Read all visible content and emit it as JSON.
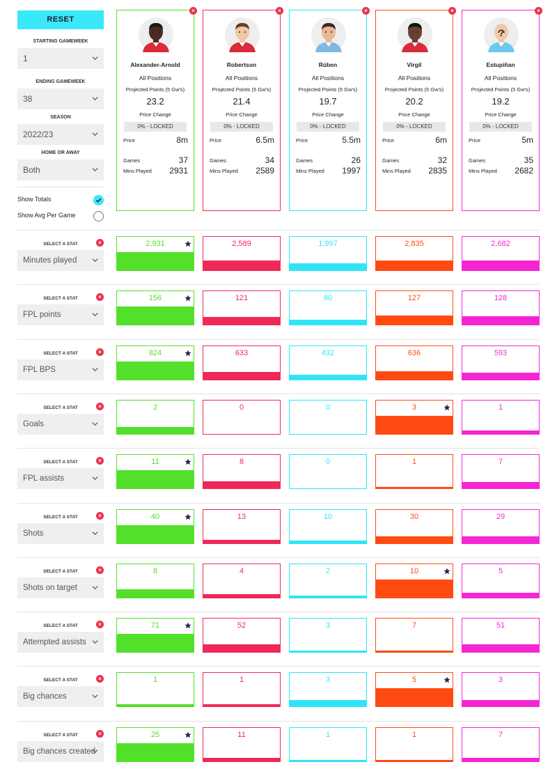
{
  "filters": {
    "reset_label": "RESET",
    "starting_gameweek_label": "STARTING GAMEWEEK",
    "starting_gameweek_value": "1",
    "ending_gameweek_label": "ENDING GAMEWEEK",
    "ending_gameweek_value": "38",
    "season_label": "SEASON",
    "season_value": "2022/23",
    "home_away_label": "HOME OR AWAY",
    "home_away_value": "Both",
    "show_totals_label": "Show Totals",
    "show_totals_checked": true,
    "show_avg_label": "Show Avg Per Game",
    "show_avg_checked": false
  },
  "card_labels": {
    "projected_points": "Projected Points (5 Gw's)",
    "price_change": "Price Change",
    "price": "Price",
    "games": "Games",
    "mins_played": "Mins Played",
    "close": "×"
  },
  "players": [
    {
      "name": "Alexander-Arnold",
      "position": "All Positions",
      "projected_points": "23.2",
      "price_change": "0% - LOCKED",
      "price": "8m",
      "games": "37",
      "mins_played": "2931",
      "color": "#52e02a",
      "skin": "#4a2c22",
      "hair": "#1a1a1a",
      "shirt": "#d92b3a",
      "bald": false
    },
    {
      "name": "Robertson",
      "position": "All Positions",
      "projected_points": "21.4",
      "price_change": "0% - LOCKED",
      "price": "6.5m",
      "games": "34",
      "mins_played": "2589",
      "color": "#ef2857",
      "skin": "#f0c7a8",
      "hair": "#6b3a1f",
      "shirt": "#d92b3a",
      "bald": false
    },
    {
      "name": "Rúben",
      "position": "All Positions",
      "projected_points": "19.7",
      "price_change": "0% - LOCKED",
      "price": "5.5m",
      "games": "26",
      "mins_played": "1997",
      "color": "#30e4f7",
      "skin": "#e8b894",
      "hair": "#3a2a1f",
      "shirt": "#7fb8e0",
      "bald": false
    },
    {
      "name": "Virgil",
      "position": "All Positions",
      "projected_points": "20.2",
      "price_change": "0% - LOCKED",
      "price": "6m",
      "games": "32",
      "mins_played": "2835",
      "color": "#ff4a12",
      "skin": "#6a4030",
      "hair": "#111111",
      "shirt": "#d92b3a",
      "bald": false
    },
    {
      "name": "Estupiñan",
      "position": "All Positions",
      "projected_points": "19.2",
      "price_change": "0% - LOCKED",
      "price": "5m",
      "games": "35",
      "mins_played": "2682",
      "color": "#f525d4",
      "skin": "#f2c9a8",
      "hair": "#f2c9a8",
      "shirt": "#6ec8ef",
      "bald": true
    }
  ],
  "stat_select_label": "SELECT A STAT",
  "stat_rows": [
    {
      "stat": "Minutes played",
      "values": [
        2931,
        2589,
        1997,
        2835,
        2682
      ],
      "display": [
        "2,931",
        "2,589",
        "1,997",
        "2,835",
        "2,682"
      ],
      "fill": [
        1.0,
        0.53,
        0.38,
        0.53,
        0.53
      ],
      "best": 0
    },
    {
      "stat": "FPL points",
      "values": [
        156,
        121,
        80,
        127,
        128
      ],
      "display": [
        "156",
        "121",
        "80",
        "127",
        "128"
      ],
      "fill": [
        1.0,
        0.43,
        0.27,
        0.49,
        0.47
      ],
      "best": 0
    },
    {
      "stat": "FPL BPS",
      "values": [
        824,
        633,
        432,
        636,
        593
      ],
      "display": [
        "824",
        "633",
        "432",
        "636",
        "593"
      ],
      "fill": [
        1.0,
        0.43,
        0.27,
        0.45,
        0.4
      ],
      "best": 0
    },
    {
      "stat": "Goals",
      "values": [
        2,
        0,
        0,
        3,
        1
      ],
      "display": [
        "2",
        "0",
        "0",
        "3",
        "1"
      ],
      "fill": [
        0.38,
        0,
        0,
        1.0,
        0.18
      ],
      "best": 3
    },
    {
      "stat": "FPL assists",
      "values": [
        11,
        8,
        0,
        1,
        7
      ],
      "display": [
        "11",
        "8",
        "0",
        "1",
        "7"
      ],
      "fill": [
        1.0,
        0.4,
        0,
        0.06,
        0.33
      ],
      "best": 0
    },
    {
      "stat": "Shots",
      "values": [
        40,
        13,
        10,
        30,
        29
      ],
      "display": [
        "40",
        "13",
        "10",
        "30",
        "29"
      ],
      "fill": [
        1.0,
        0.2,
        0.14,
        0.4,
        0.4
      ],
      "best": 0
    },
    {
      "stat": "Shots on target",
      "values": [
        8,
        4,
        2,
        10,
        5
      ],
      "display": [
        "8",
        "4",
        "2",
        "10",
        "5"
      ],
      "fill": [
        0.45,
        0.2,
        0.12,
        1.0,
        0.28
      ],
      "best": 3
    },
    {
      "stat": "Attempted assists",
      "values": [
        71,
        52,
        3,
        7,
        51
      ],
      "display": [
        "71",
        "52",
        "3",
        "7",
        "51"
      ],
      "fill": [
        1.0,
        0.42,
        0.04,
        0.06,
        0.42
      ],
      "best": 0
    },
    {
      "stat": "Big chances",
      "values": [
        1,
        1,
        3,
        5,
        3
      ],
      "display": [
        "1",
        "1",
        "3",
        "5",
        "3"
      ],
      "fill": [
        0.12,
        0.12,
        0.35,
        1.0,
        0.35
      ],
      "best": 3
    },
    {
      "stat": "Big chances created",
      "values": [
        25,
        11,
        1,
        1,
        7
      ],
      "display": [
        "25",
        "11",
        "1",
        "1",
        "7"
      ],
      "fill": [
        1.0,
        0.2,
        0.04,
        0.04,
        0.2
      ],
      "best": 0
    }
  ]
}
